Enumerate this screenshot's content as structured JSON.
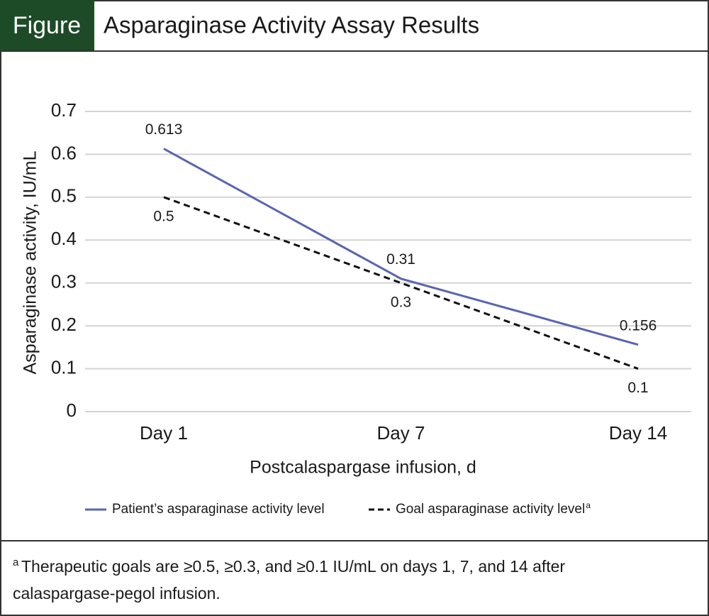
{
  "header": {
    "label": "Figure"
  },
  "chart_data": {
    "type": "line",
    "title": "Asparaginase Activity Assay Results",
    "x_label": "Postcalaspargase infusion, d",
    "y_label": "Asparaginase activity, IU/mL",
    "categories": [
      "Day 1",
      "Day 7",
      "Day 14"
    ],
    "series": [
      {
        "name": "Patient’s asparaginase activity level",
        "color": "#5a65ad",
        "dashed": false,
        "values": [
          0.613,
          0.31,
          0.156
        ]
      },
      {
        "name": "Goal asparaginase activity level",
        "name_superscript": "a",
        "color": "#111111",
        "dashed": true,
        "values": [
          0.5,
          0.3,
          0.1
        ]
      }
    ],
    "ylim": [
      0,
      0.7
    ],
    "yticks": [
      0,
      0.1,
      0.2,
      0.3,
      0.4,
      0.5,
      0.6,
      0.7
    ],
    "grid": true,
    "legend": "bottom"
  },
  "footnote": {
    "marker": "a",
    "lines": [
      "Therapeutic goals are ≥0.5, ≥0.3, and ≥0.1 IU/mL on days 1, 7, and 14 after",
      "calaspargase-pegol infusion."
    ]
  }
}
